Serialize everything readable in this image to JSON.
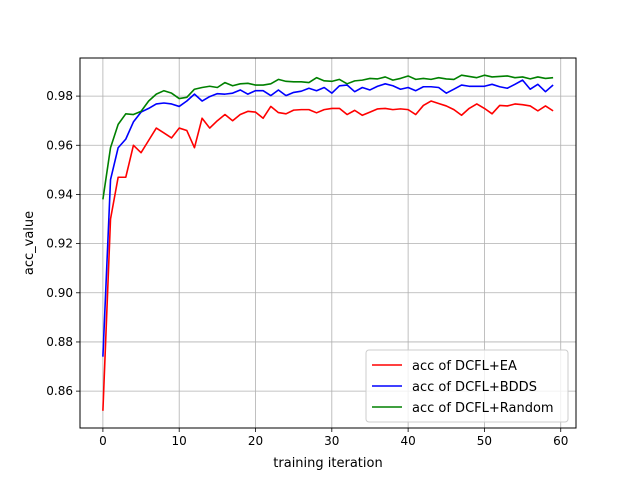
{
  "chart_data": {
    "type": "line",
    "title": "",
    "xlabel": "training iteration",
    "ylabel": "acc_value",
    "xlim": [
      -3,
      62
    ],
    "ylim": [
      0.845,
      0.9955
    ],
    "xticks": [
      0,
      10,
      20,
      30,
      40,
      50,
      60
    ],
    "yticks": [
      0.86,
      0.88,
      0.9,
      0.92,
      0.94,
      0.96,
      0.98
    ],
    "ytick_labels": [
      "0.86",
      "0.88",
      "0.90",
      "0.92",
      "0.94",
      "0.96",
      "0.98"
    ],
    "grid": true,
    "legend_position": "lower-right",
    "x": [
      0,
      1,
      2,
      3,
      4,
      5,
      6,
      7,
      8,
      9,
      10,
      11,
      12,
      13,
      14,
      15,
      16,
      17,
      18,
      19,
      20,
      21,
      22,
      23,
      24,
      25,
      26,
      27,
      28,
      29,
      30,
      31,
      32,
      33,
      34,
      35,
      36,
      37,
      38,
      39,
      40,
      41,
      42,
      43,
      44,
      45,
      46,
      47,
      48,
      49,
      50,
      51,
      52,
      53,
      54,
      55,
      56,
      57,
      58,
      59
    ],
    "series": [
      {
        "name": "acc of DCFL+EA",
        "color": "#ff0000",
        "values": [
          0.852,
          0.93,
          0.947,
          0.947,
          0.96,
          0.957,
          0.962,
          0.967,
          0.965,
          0.963,
          0.967,
          0.966,
          0.959,
          0.971,
          0.967,
          0.97,
          0.9725,
          0.97,
          0.9725,
          0.9738,
          0.9735,
          0.971,
          0.9758,
          0.9733,
          0.9728,
          0.9743,
          0.9745,
          0.9745,
          0.9732,
          0.9745,
          0.975,
          0.975,
          0.9725,
          0.9742,
          0.9722,
          0.9735,
          0.9748,
          0.975,
          0.9745,
          0.9748,
          0.9745,
          0.9725,
          0.9762,
          0.978,
          0.977,
          0.976,
          0.9745,
          0.9722,
          0.975,
          0.9768,
          0.975,
          0.9728,
          0.9762,
          0.976,
          0.9768,
          0.9765,
          0.976,
          0.974,
          0.976,
          0.974
        ]
      },
      {
        "name": "acc of DCFL+BDDS",
        "color": "#0000ff",
        "values": [
          0.874,
          0.946,
          0.959,
          0.9625,
          0.9695,
          0.9735,
          0.975,
          0.9768,
          0.9772,
          0.9768,
          0.9758,
          0.978,
          0.9808,
          0.978,
          0.9798,
          0.981,
          0.9808,
          0.9812,
          0.9825,
          0.9808,
          0.9822,
          0.9822,
          0.9802,
          0.9825,
          0.9802,
          0.9815,
          0.982,
          0.9832,
          0.9822,
          0.9835,
          0.9812,
          0.9842,
          0.9845,
          0.9818,
          0.9835,
          0.9825,
          0.984,
          0.985,
          0.9842,
          0.9828,
          0.9835,
          0.9822,
          0.9838,
          0.9838,
          0.9835,
          0.9812,
          0.9828,
          0.9845,
          0.984,
          0.984,
          0.984,
          0.9848,
          0.9838,
          0.9832,
          0.9848,
          0.9865,
          0.9828,
          0.9848,
          0.9818,
          0.9845
        ]
      },
      {
        "name": "acc of DCFL+Random",
        "color": "#008000",
        "values": [
          0.938,
          0.959,
          0.9685,
          0.9728,
          0.9725,
          0.9738,
          0.978,
          0.9808,
          0.9822,
          0.9812,
          0.979,
          0.9795,
          0.9828,
          0.9835,
          0.984,
          0.9835,
          0.9855,
          0.9842,
          0.985,
          0.9852,
          0.9845,
          0.9845,
          0.985,
          0.9868,
          0.986,
          0.9858,
          0.9858,
          0.9855,
          0.9875,
          0.9862,
          0.986,
          0.9868,
          0.985,
          0.9862,
          0.9865,
          0.9872,
          0.987,
          0.9878,
          0.9865,
          0.9872,
          0.9882,
          0.9868,
          0.9872,
          0.9868,
          0.9875,
          0.987,
          0.9868,
          0.9885,
          0.988,
          0.9875,
          0.9885,
          0.9878,
          0.988,
          0.9882,
          0.9875,
          0.9878,
          0.987,
          0.9878,
          0.9872,
          0.9875
        ]
      }
    ]
  }
}
